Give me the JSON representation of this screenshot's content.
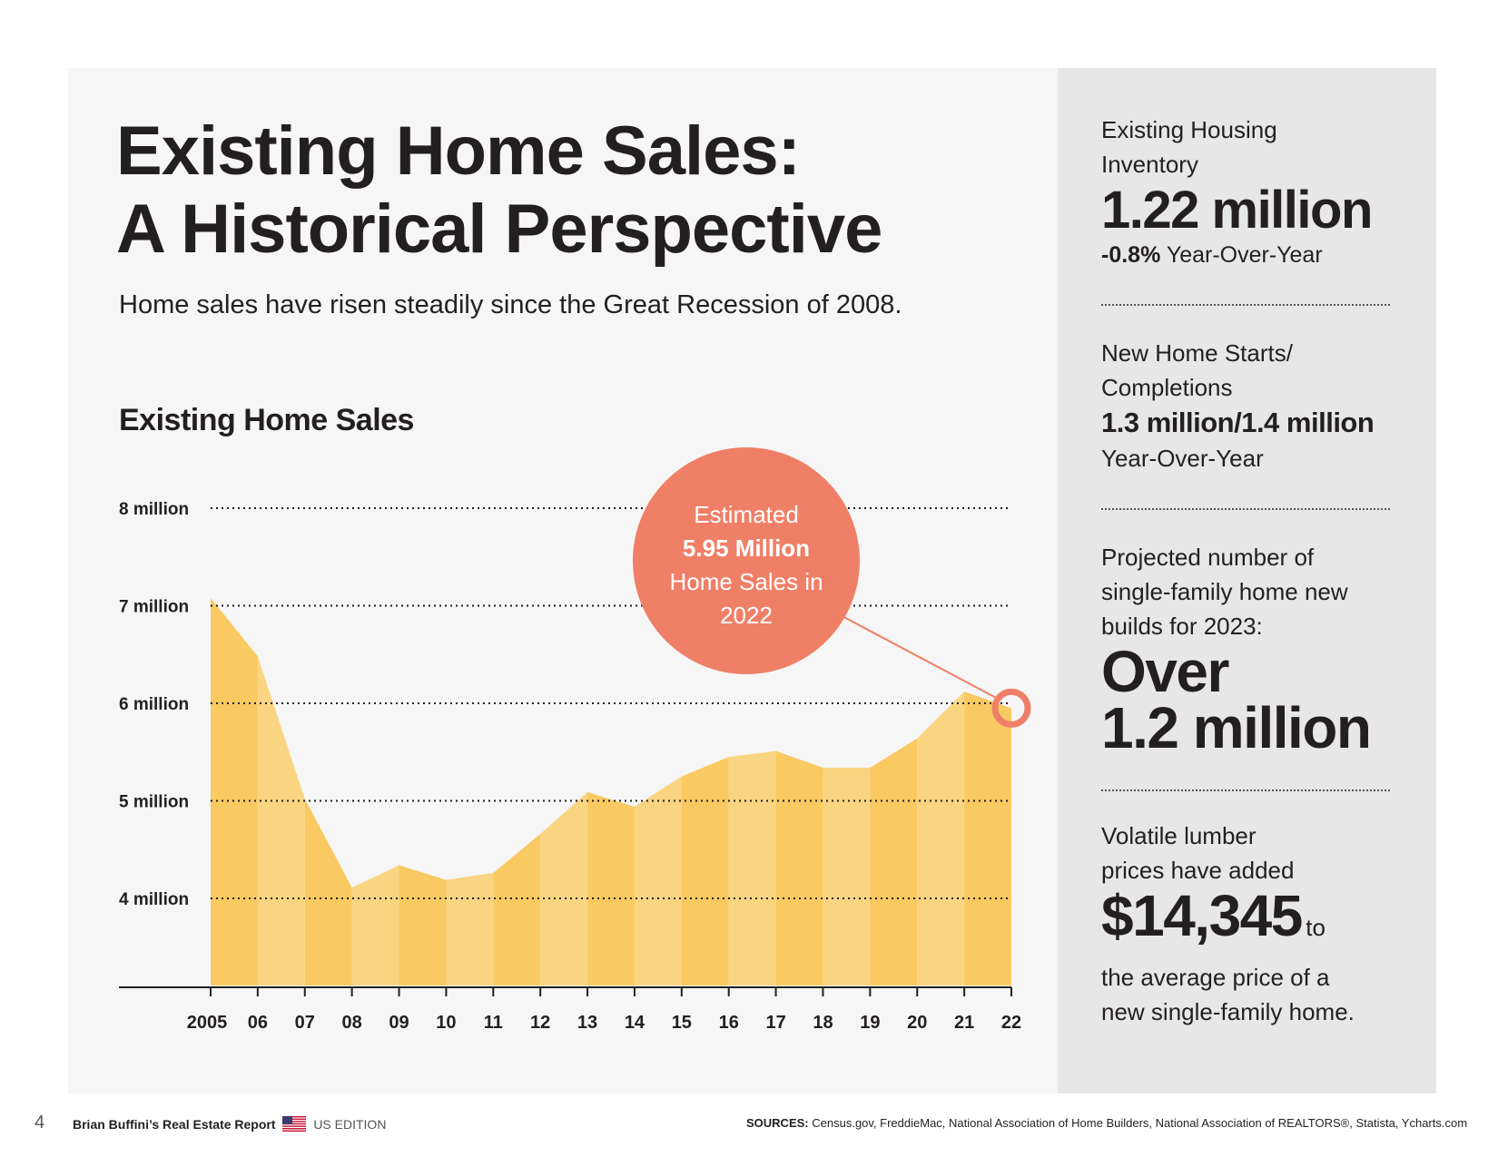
{
  "title_line1": "Existing Home Sales:",
  "title_line2": "A Historical Perspective",
  "subtitle": "Home sales have risen steadily since the Great Recession of 2008.",
  "callout": {
    "line1": "Estimated",
    "line2": "5.95 Million",
    "line3": "Home Sales in",
    "line4": "2022"
  },
  "chart_data": {
    "type": "area",
    "title": "Existing Home Sales",
    "categories": [
      "2005",
      "06",
      "07",
      "08",
      "09",
      "10",
      "11",
      "12",
      "13",
      "14",
      "15",
      "16",
      "17",
      "18",
      "19",
      "20",
      "21",
      "22"
    ],
    "values": [
      7.08,
      6.48,
      5.02,
      4.11,
      4.34,
      4.19,
      4.26,
      4.66,
      5.09,
      4.94,
      5.25,
      5.45,
      5.51,
      5.34,
      5.34,
      5.64,
      6.12,
      5.95
    ],
    "ytick_labels": [
      "8 million",
      "7 million",
      "6 million",
      "5 million",
      "4 million"
    ],
    "ytick_values": [
      8,
      7,
      6,
      5,
      4
    ],
    "ylim": [
      3.0,
      8.0
    ],
    "grid": true,
    "colors": {
      "dark": "#f9c962",
      "light": "#fad581",
      "callout": "#f07f67"
    }
  },
  "sidebar": {
    "inventory_label_1": "Existing Housing",
    "inventory_label_2": "Inventory",
    "inventory_value": "1.22 million",
    "inventory_change": "-0.8%",
    "inventory_change_suffix": "Year-Over-Year",
    "starts_label_1": "New Home Starts/",
    "starts_label_2": "Completions",
    "starts_value": "1.3 million/1.4 million",
    "starts_suffix": "Year-Over-Year",
    "projected_1": "Projected number of",
    "projected_2": "single-family home new",
    "projected_3": "builds for 2023:",
    "projected_value_1": "Over",
    "projected_value_2": "1.2 million",
    "lumber_1": "Volatile lumber",
    "lumber_2": "prices have added",
    "lumber_value": "$14,345",
    "lumber_to": "to",
    "lumber_3": "the average price of a",
    "lumber_4": "new single-family home."
  },
  "footer": {
    "page_number": "4",
    "report_name": "Brian Buffini’s Real Estate Report",
    "edition": "US EDITION",
    "sources_label": "SOURCES:",
    "sources_text": "Census.gov, FreddieMac, National Association of Home Builders, National Association of REALTORS®, Statista, Ycharts.com"
  }
}
